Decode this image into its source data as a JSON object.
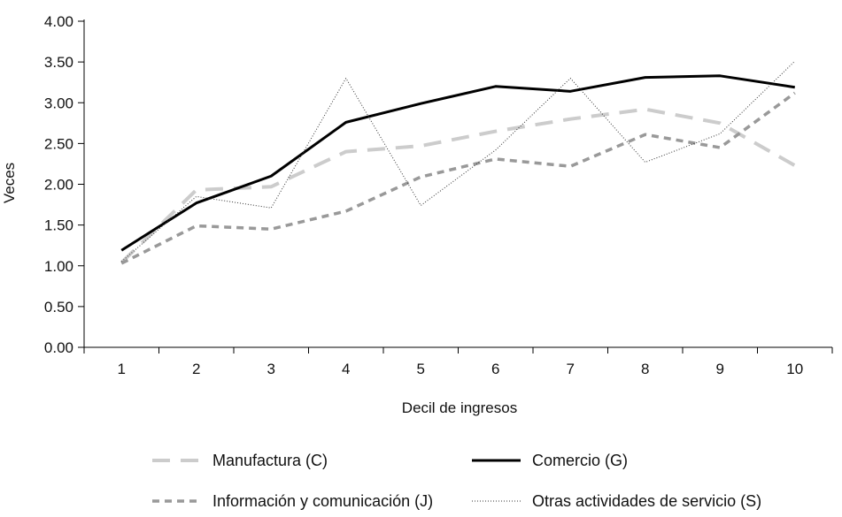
{
  "chart_data": {
    "type": "line",
    "title": "",
    "xlabel": "Decil de ingresos",
    "ylabel": "Veces",
    "categories": [
      "1",
      "2",
      "3",
      "4",
      "5",
      "6",
      "7",
      "8",
      "9",
      "10"
    ],
    "ylim": [
      0,
      4
    ],
    "yticks": [
      "0.00",
      "0.50",
      "1.00",
      "1.50",
      "2.00",
      "2.50",
      "3.00",
      "3.50",
      "4.00"
    ],
    "grid": false,
    "legend_position": "bottom",
    "series": [
      {
        "name": "Manufactura (C)",
        "style": "long-dash",
        "color": "#cccccc",
        "values": [
          1.04,
          1.93,
          1.97,
          2.4,
          2.47,
          2.65,
          2.8,
          2.92,
          2.75,
          2.23
        ]
      },
      {
        "name": "Comercio (G)",
        "style": "solid",
        "color": "#000000",
        "values": [
          1.19,
          1.77,
          2.1,
          2.76,
          2.99,
          3.2,
          3.14,
          3.31,
          3.33,
          3.19
        ]
      },
      {
        "name": "Información y comunicación (J)",
        "style": "short-dash",
        "color": "#999999",
        "values": [
          1.03,
          1.49,
          1.45,
          1.67,
          2.09,
          2.31,
          2.22,
          2.61,
          2.45,
          3.12
        ]
      },
      {
        "name": "Otras actividades de servicio (S)",
        "style": "dotted",
        "color": "#333333",
        "values": [
          1.05,
          1.85,
          1.71,
          3.3,
          1.74,
          2.42,
          3.3,
          2.27,
          2.62,
          3.51
        ]
      }
    ]
  }
}
